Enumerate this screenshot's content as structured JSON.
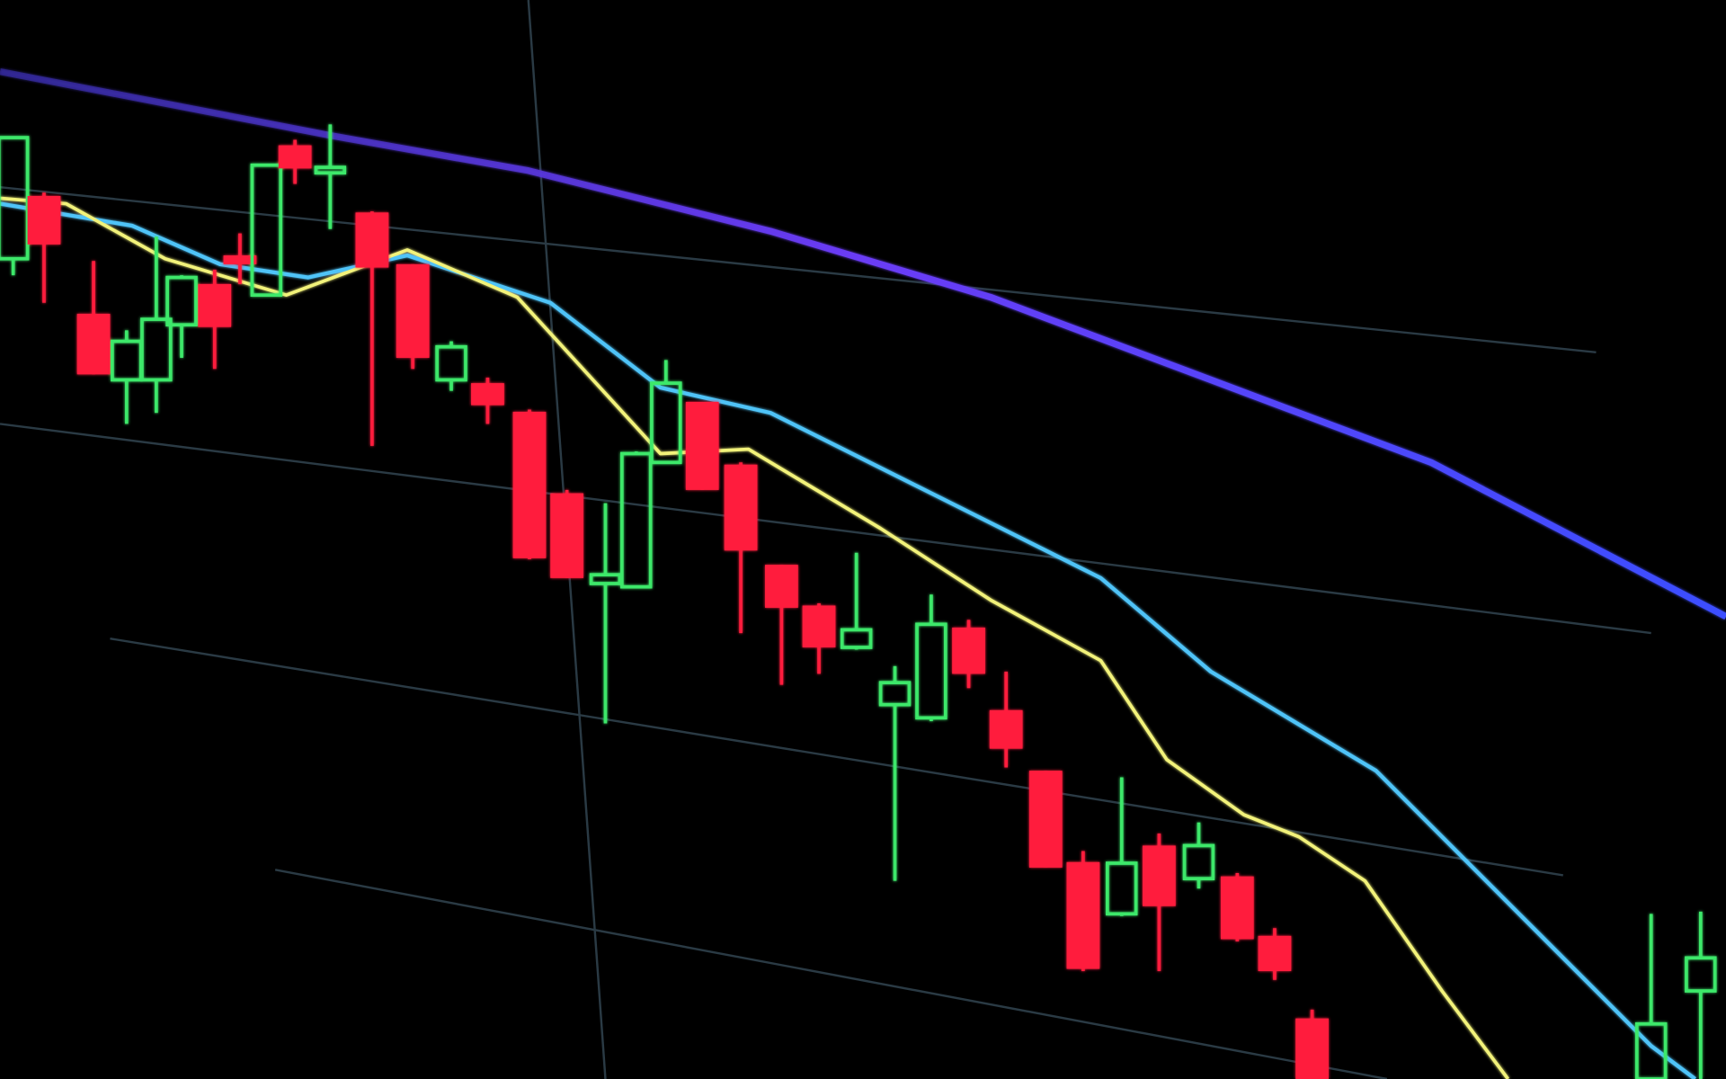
{
  "scene": {
    "description_type": "photo of trading screen candlestick chart",
    "colors": {
      "background": "#000000",
      "bullish_candle": "#3ee86a",
      "bearish_candle": "#ff1f3d",
      "moving_average_slow": "#5a3cf0",
      "moving_average_mid": "#4fc3f7",
      "moving_average_fast": "#f2f27a",
      "grid": "#2a3a44"
    },
    "trend": "downtrend"
  }
}
